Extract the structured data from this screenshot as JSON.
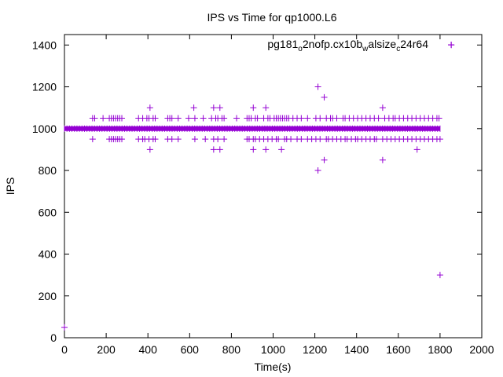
{
  "chart_data": {
    "type": "scatter",
    "title": "IPS vs Time for qp1000.L6",
    "xlabel": "Time(s)",
    "ylabel": "IPS",
    "xlim": [
      0,
      2000
    ],
    "ylim": [
      0,
      1450
    ],
    "x_ticks": [
      0,
      200,
      400,
      600,
      800,
      1000,
      1200,
      1400,
      1600,
      1800,
      2000
    ],
    "y_ticks": [
      0,
      200,
      400,
      600,
      800,
      1000,
      1200,
      1400
    ],
    "grid": false,
    "legend_position": "top-right",
    "series": [
      {
        "name": "pg181_o2nofp.cx10b_walsize_c24r64",
        "color": "#9400d3",
        "marker": "plus",
        "dense_band": {
          "y": 1000,
          "x_start": 0,
          "x_end": 1800
        },
        "points": [
          [
            0,
            50
          ],
          [
            1854,
            1400
          ],
          [
            1800,
            300
          ],
          [
            1215,
            1200
          ],
          [
            1245,
            1150
          ],
          [
            1215,
            800
          ],
          [
            1245,
            850
          ],
          [
            1525,
            850
          ],
          [
            410,
            1100
          ],
          [
            620,
            1100
          ],
          [
            715,
            1100
          ],
          [
            745,
            1100
          ],
          [
            905,
            1100
          ],
          [
            965,
            1100
          ],
          [
            1525,
            1100
          ],
          [
            410,
            900
          ],
          [
            715,
            900
          ],
          [
            745,
            900
          ],
          [
            905,
            900
          ],
          [
            965,
            900
          ],
          [
            1040,
            900
          ],
          [
            1690,
            900
          ],
          [
            135,
            1050
          ],
          [
            145,
            1050
          ],
          [
            185,
            1050
          ],
          [
            215,
            1050
          ],
          [
            225,
            1050
          ],
          [
            235,
            1050
          ],
          [
            245,
            1050
          ],
          [
            255,
            1050
          ],
          [
            265,
            1050
          ],
          [
            275,
            1050
          ],
          [
            355,
            1050
          ],
          [
            375,
            1050
          ],
          [
            395,
            1050
          ],
          [
            405,
            1050
          ],
          [
            425,
            1050
          ],
          [
            435,
            1050
          ],
          [
            495,
            1050
          ],
          [
            505,
            1050
          ],
          [
            515,
            1050
          ],
          [
            545,
            1050
          ],
          [
            595,
            1050
          ],
          [
            625,
            1050
          ],
          [
            665,
            1050
          ],
          [
            705,
            1050
          ],
          [
            725,
            1050
          ],
          [
            735,
            1050
          ],
          [
            755,
            1050
          ],
          [
            765,
            1050
          ],
          [
            825,
            1050
          ],
          [
            875,
            1050
          ],
          [
            885,
            1050
          ],
          [
            895,
            1050
          ],
          [
            915,
            1050
          ],
          [
            925,
            1050
          ],
          [
            955,
            1050
          ],
          [
            975,
            1050
          ],
          [
            985,
            1050
          ],
          [
            1005,
            1050
          ],
          [
            1015,
            1050
          ],
          [
            1025,
            1050
          ],
          [
            1035,
            1050
          ],
          [
            1045,
            1050
          ],
          [
            1055,
            1050
          ],
          [
            1065,
            1050
          ],
          [
            1075,
            1050
          ],
          [
            1095,
            1050
          ],
          [
            1115,
            1050
          ],
          [
            1135,
            1050
          ],
          [
            1165,
            1050
          ],
          [
            1205,
            1050
          ],
          [
            1225,
            1050
          ],
          [
            1255,
            1050
          ],
          [
            1275,
            1050
          ],
          [
            1285,
            1050
          ],
          [
            1305,
            1050
          ],
          [
            1335,
            1050
          ],
          [
            1345,
            1050
          ],
          [
            1365,
            1050
          ],
          [
            1385,
            1050
          ],
          [
            1405,
            1050
          ],
          [
            1425,
            1050
          ],
          [
            1445,
            1050
          ],
          [
            1465,
            1050
          ],
          [
            1485,
            1050
          ],
          [
            1505,
            1050
          ],
          [
            1535,
            1050
          ],
          [
            1555,
            1050
          ],
          [
            1575,
            1050
          ],
          [
            1585,
            1050
          ],
          [
            1605,
            1050
          ],
          [
            1625,
            1050
          ],
          [
            1645,
            1050
          ],
          [
            1665,
            1050
          ],
          [
            1685,
            1050
          ],
          [
            1705,
            1050
          ],
          [
            1725,
            1050
          ],
          [
            1745,
            1050
          ],
          [
            1765,
            1050
          ],
          [
            1785,
            1050
          ],
          [
            1795,
            1050
          ],
          [
            135,
            950
          ],
          [
            215,
            950
          ],
          [
            225,
            950
          ],
          [
            235,
            950
          ],
          [
            245,
            950
          ],
          [
            255,
            950
          ],
          [
            265,
            950
          ],
          [
            275,
            950
          ],
          [
            355,
            950
          ],
          [
            375,
            950
          ],
          [
            385,
            950
          ],
          [
            405,
            950
          ],
          [
            425,
            950
          ],
          [
            435,
            950
          ],
          [
            495,
            950
          ],
          [
            515,
            950
          ],
          [
            545,
            950
          ],
          [
            625,
            950
          ],
          [
            675,
            950
          ],
          [
            715,
            950
          ],
          [
            735,
            950
          ],
          [
            765,
            950
          ],
          [
            875,
            950
          ],
          [
            885,
            950
          ],
          [
            905,
            950
          ],
          [
            915,
            950
          ],
          [
            935,
            950
          ],
          [
            955,
            950
          ],
          [
            975,
            950
          ],
          [
            995,
            950
          ],
          [
            1015,
            950
          ],
          [
            1025,
            950
          ],
          [
            1055,
            950
          ],
          [
            1065,
            950
          ],
          [
            1085,
            950
          ],
          [
            1115,
            950
          ],
          [
            1135,
            950
          ],
          [
            1165,
            950
          ],
          [
            1185,
            950
          ],
          [
            1205,
            950
          ],
          [
            1225,
            950
          ],
          [
            1255,
            950
          ],
          [
            1265,
            950
          ],
          [
            1285,
            950
          ],
          [
            1305,
            950
          ],
          [
            1325,
            950
          ],
          [
            1345,
            950
          ],
          [
            1355,
            950
          ],
          [
            1375,
            950
          ],
          [
            1395,
            950
          ],
          [
            1405,
            950
          ],
          [
            1425,
            950
          ],
          [
            1445,
            950
          ],
          [
            1465,
            950
          ],
          [
            1485,
            950
          ],
          [
            1495,
            950
          ],
          [
            1525,
            950
          ],
          [
            1545,
            950
          ],
          [
            1565,
            950
          ],
          [
            1585,
            950
          ],
          [
            1605,
            950
          ],
          [
            1625,
            950
          ],
          [
            1645,
            950
          ],
          [
            1665,
            950
          ],
          [
            1685,
            950
          ],
          [
            1705,
            950
          ],
          [
            1725,
            950
          ],
          [
            1745,
            950
          ],
          [
            1765,
            950
          ],
          [
            1785,
            950
          ],
          [
            1800,
            950
          ]
        ]
      }
    ]
  },
  "legend": {
    "text_main_1": "pg181",
    "text_sub_1": "o",
    "text_main_2": "2nofp.cx10b",
    "text_sub_2": "w",
    "text_main_3": "alsize",
    "text_sub_3": "c",
    "text_main_4": "24r64"
  }
}
